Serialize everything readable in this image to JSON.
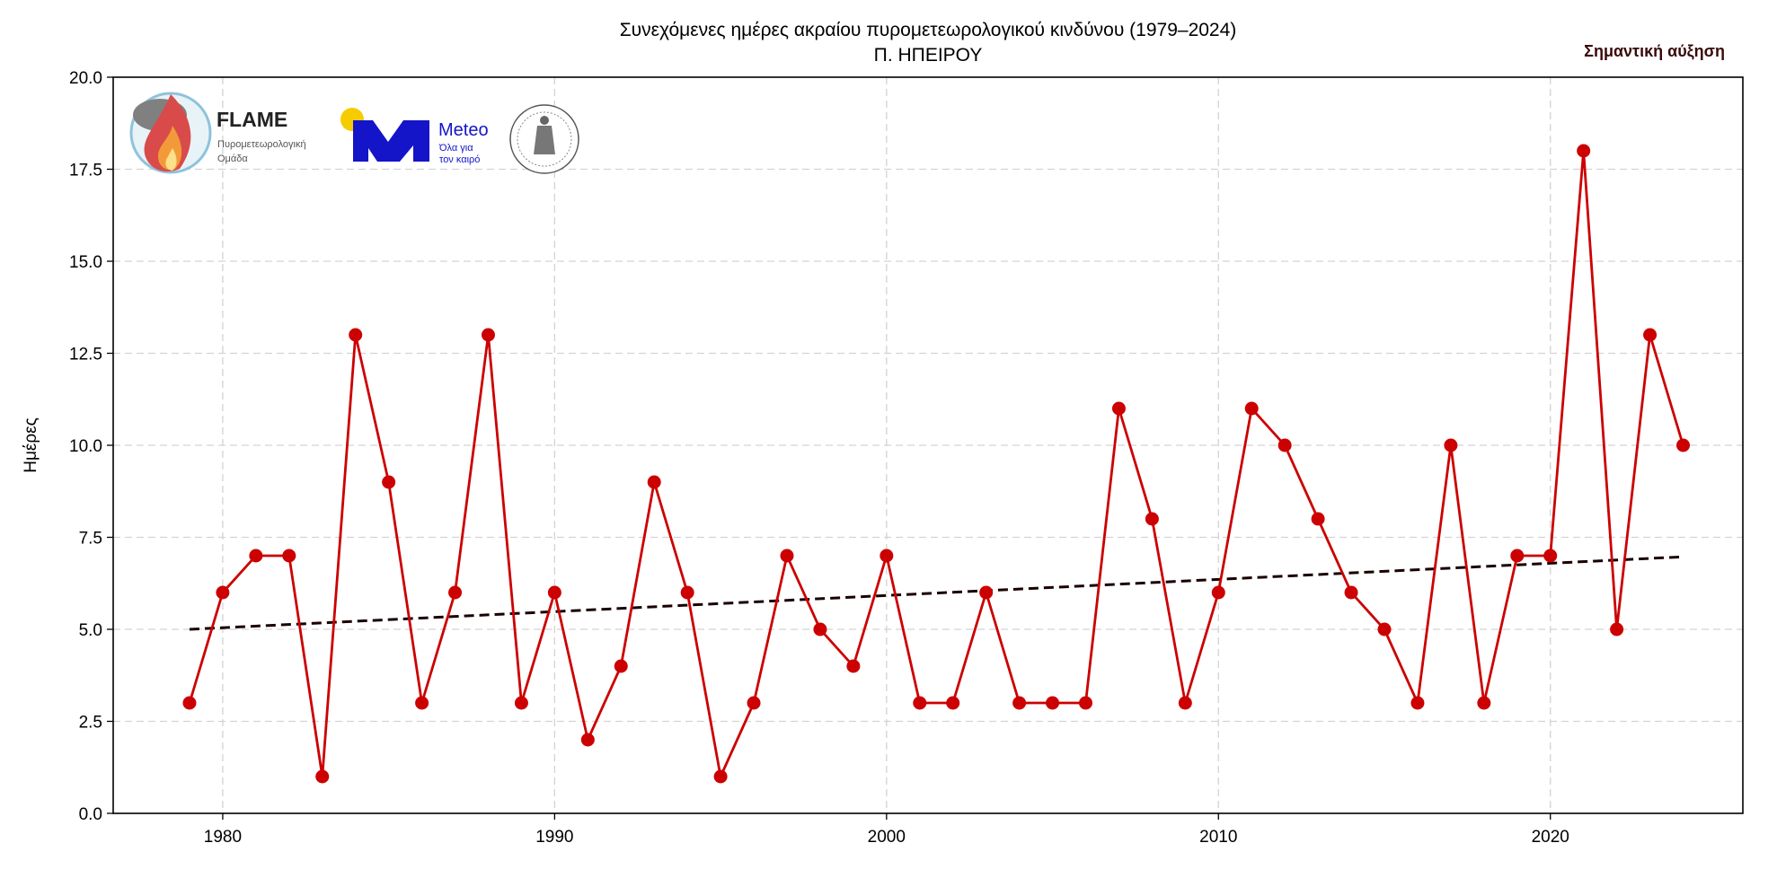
{
  "chart_data": {
    "type": "line",
    "title": "Συνεχόμενες ημέρες ακραίου πυρομετεωρολογικού κινδύνου (1979–2024)",
    "subtitle": "Π. ΗΠΕΙΡΟΥ",
    "annotation": "Σημαντική αύξηση",
    "xlabel": "",
    "ylabel": "Ημέρες",
    "xlim": [
      1976.7,
      2025.8
    ],
    "ylim": [
      0,
      20
    ],
    "xticks": [
      1980,
      1990,
      2000,
      2010,
      2020
    ],
    "yticks": [
      "0.0",
      "2.5",
      "5.0",
      "7.5",
      "10.0",
      "12.5",
      "15.0",
      "17.5",
      "20.0"
    ],
    "grid": true,
    "x": [
      1979,
      1980,
      1981,
      1982,
      1983,
      1984,
      1985,
      1986,
      1987,
      1988,
      1989,
      1990,
      1991,
      1992,
      1993,
      1994,
      1995,
      1996,
      1997,
      1998,
      1999,
      2000,
      2001,
      2002,
      2003,
      2004,
      2005,
      2006,
      2007,
      2008,
      2009,
      2010,
      2011,
      2012,
      2013,
      2014,
      2015,
      2016,
      2017,
      2018,
      2019,
      2020,
      2021,
      2022,
      2023,
      2024
    ],
    "series": [
      {
        "values": [
          3,
          6,
          7,
          7,
          1,
          13,
          9,
          3,
          6,
          13,
          3,
          6,
          2,
          4,
          9,
          6,
          1,
          3,
          7,
          5,
          4,
          7,
          3,
          3,
          6,
          3,
          3,
          3,
          11,
          8,
          3,
          6,
          11,
          10,
          8,
          6,
          5,
          3,
          10,
          3,
          7,
          7,
          18,
          5,
          13,
          10
        ],
        "color": "#cc0000"
      }
    ],
    "trend": {
      "x": [
        1979,
        2024
      ],
      "y": [
        5.0,
        6.97
      ],
      "color": "#1a0000",
      "style": "dashed"
    }
  },
  "logos": {
    "flame": {
      "name": "FLAME",
      "subtitle_line1": "Πυρομετεωρολογική",
      "subtitle_line2": "Ομάδα"
    },
    "meteo": {
      "name": "Meteo",
      "tagline_line1": "Όλα για",
      "tagline_line2": "τον καιρό"
    },
    "observatory": {
      "name": "observatory-seal"
    }
  }
}
